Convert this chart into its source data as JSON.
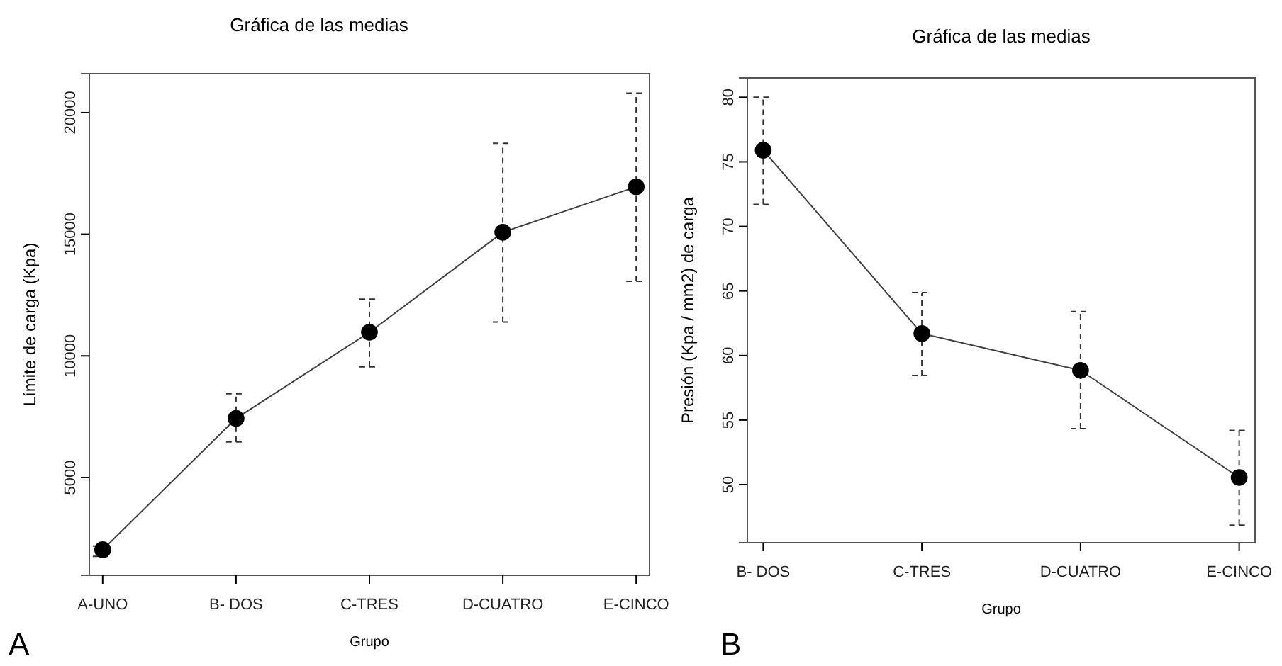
{
  "chart_data": [
    {
      "type": "line",
      "title": "Gráfica de las medias",
      "xlabel": "Grupo",
      "ylabel": "Límite de carga (Kpa)",
      "categories": [
        "A-UNO",
        "B- DOS",
        "C-TRES",
        "D-CUATRO",
        "E-CINCO"
      ],
      "series": [
        {
          "color": "#000000",
          "values": [
            2030,
            7430,
            10970,
            15080,
            16950
          ],
          "errors": [
            [
              1760,
              2180
            ],
            [
              6460,
              8440
            ],
            [
              9550,
              12330
            ],
            [
              11390,
              18740
            ],
            [
              13070,
              20800
            ]
          ]
        }
      ],
      "ylim": [
        980,
        21600
      ],
      "yticks": [
        5000,
        10000,
        15000,
        20000
      ],
      "marker": "circle",
      "line_style": "solid",
      "grid": false,
      "annotations": [
        "A"
      ]
    },
    {
      "type": "line",
      "title": "Gráfica de las medias",
      "xlabel": "Grupo",
      "ylabel": "Presión (Kpa / mm2) de carga",
      "categories": [
        "B- DOS",
        "C-TRES",
        "D-CUATRO",
        "E-CINCO"
      ],
      "series": [
        {
          "color": "#000000",
          "values": [
            75.9,
            61.7,
            58.85,
            50.55
          ],
          "errors": [
            [
              71.7,
              80
            ],
            [
              58.45,
              64.87
            ],
            [
              54.33,
              63.41
            ],
            [
              46.86,
              54.2
            ]
          ]
        }
      ],
      "ylim": [
        45.5,
        81.5
      ],
      "yticks": [
        50,
        55,
        60,
        65,
        70,
        75,
        80
      ],
      "marker": "circle",
      "line_style": "solid",
      "grid": false,
      "annotations": [
        "B"
      ]
    }
  ]
}
